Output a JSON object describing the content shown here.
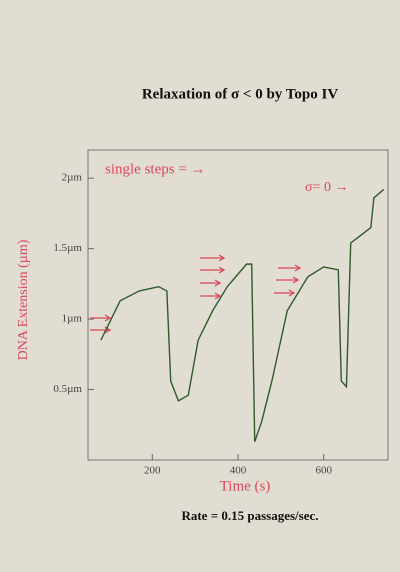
{
  "chart_data": {
    "type": "line",
    "title": "Relaxation of σ < 0 by Topo IV",
    "x_label": "Time (s)",
    "y_label": "DNA Extension (µm)",
    "annotations": [
      "single steps = →",
      "σ= 0 →"
    ],
    "footer": "Rate = 0.15 passages/sec.",
    "color": "#2f5a2a",
    "x": [
      80,
      125,
      170,
      215,
      234,
      243,
      261,
      284,
      307,
      341,
      375,
      420,
      432,
      439,
      455,
      479,
      515,
      563,
      600,
      634,
      641,
      653,
      663,
      693,
      710,
      717,
      740
    ],
    "values": [
      0.85,
      1.13,
      1.2,
      1.23,
      1.2,
      0.56,
      0.42,
      0.46,
      0.85,
      1.06,
      1.23,
      1.39,
      1.39,
      0.13,
      0.27,
      0.56,
      1.06,
      1.3,
      1.37,
      1.35,
      0.56,
      0.52,
      1.54,
      1.61,
      1.65,
      1.86,
      1.92
    ],
    "xlim": [
      50,
      750
    ],
    "ylim": [
      0,
      2.2
    ],
    "xticks": [
      200,
      400,
      600
    ],
    "yticks": [
      {
        "value": 0.5,
        "label": "0.5µm"
      },
      {
        "value": 1,
        "label": "1µm"
      },
      {
        "value": 1.5,
        "label": "1.5µm"
      },
      {
        "value": 2,
        "label": "2µm"
      }
    ]
  }
}
